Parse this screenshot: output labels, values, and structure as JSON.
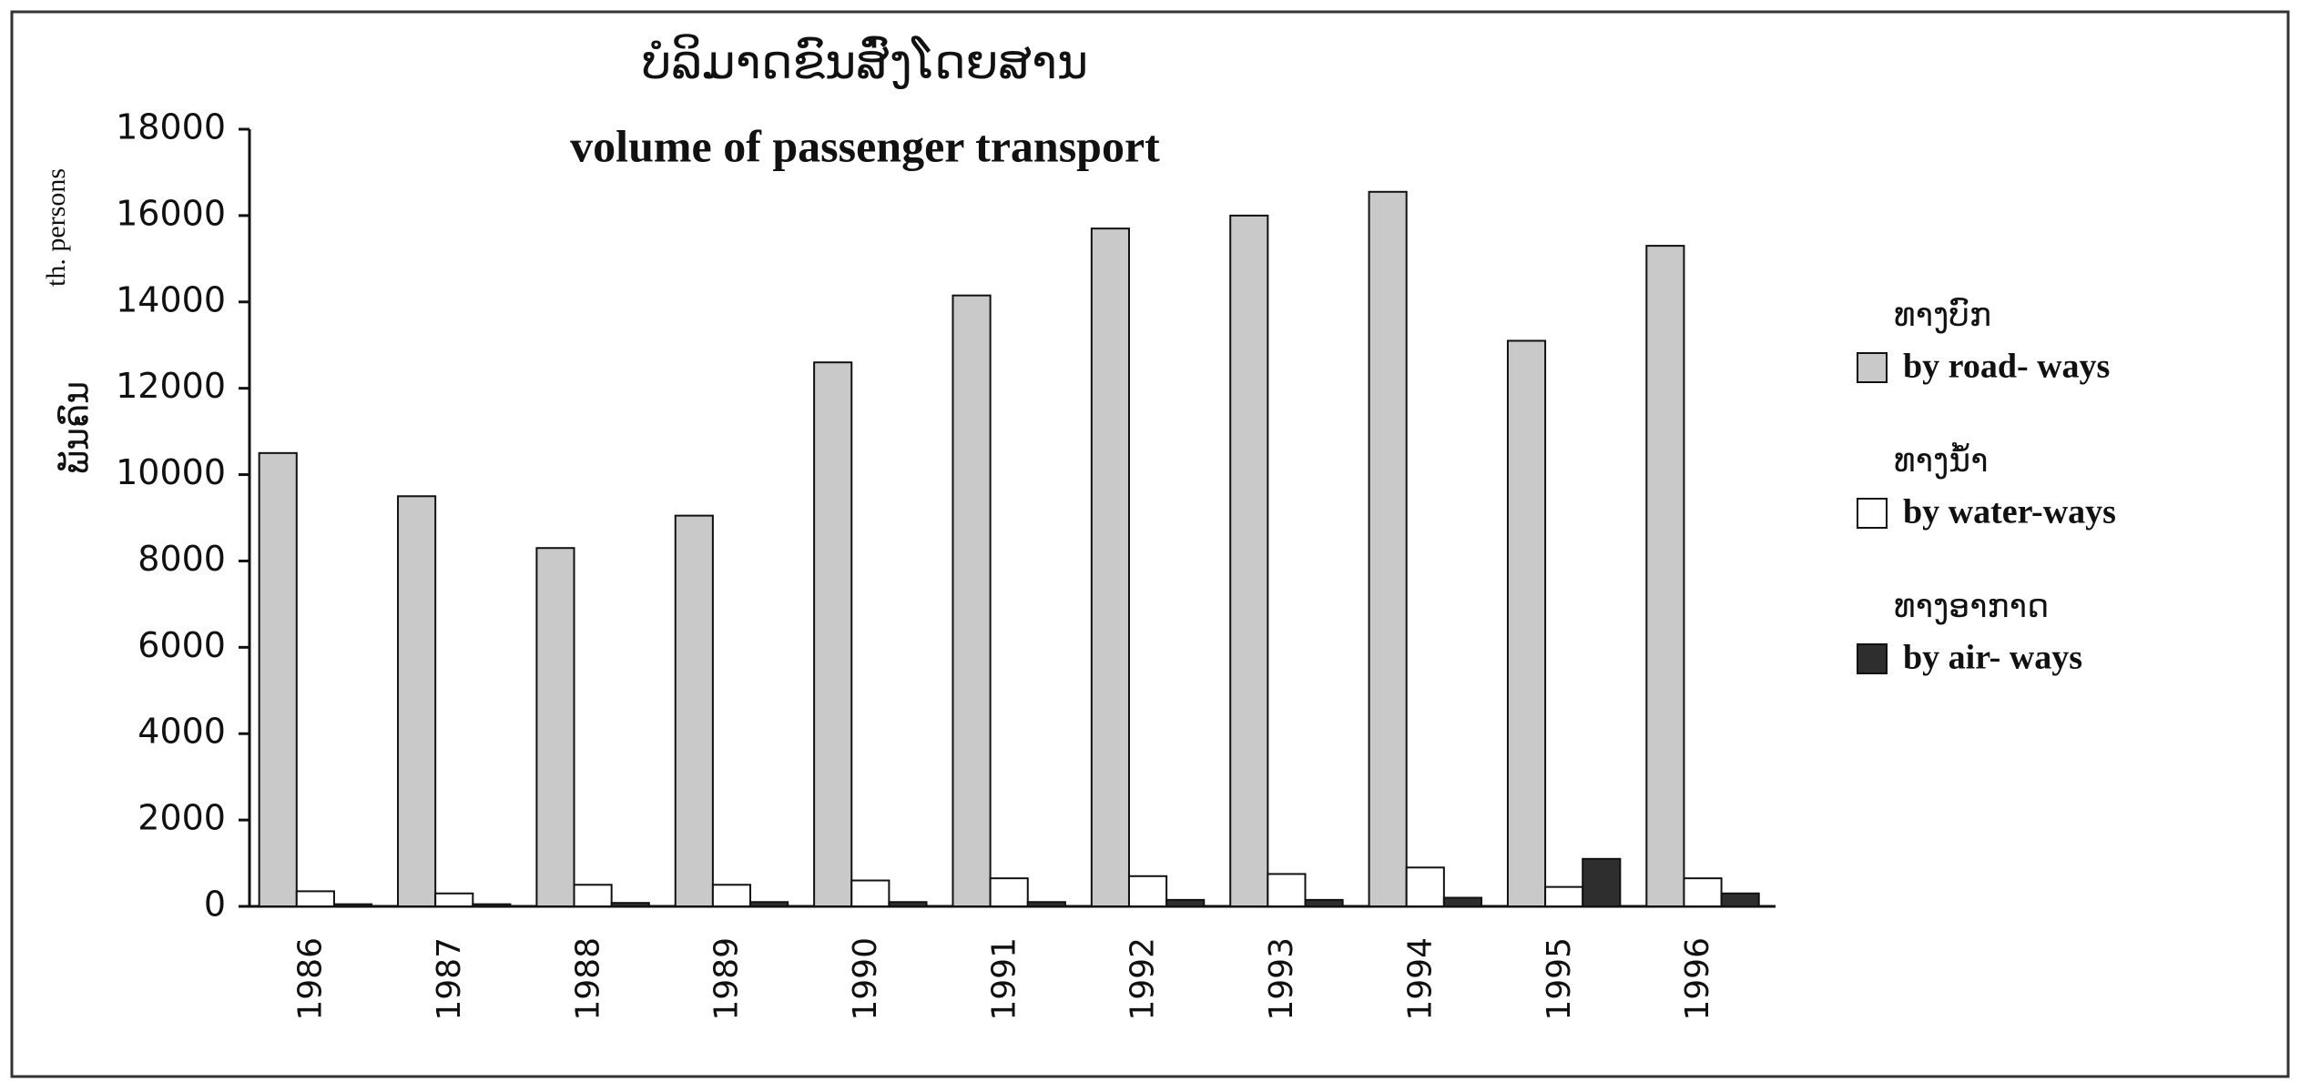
{
  "chart_data": {
    "type": "bar",
    "title": "ບໍລິມາດຂົນສົ່ງໂດຍສານ",
    "subtitle": "volume of passenger transport",
    "y_label_lao": "ພັນຄົນ",
    "y_label": "th. persons",
    "categories": [
      "1986",
      "1987",
      "1988",
      "1989",
      "1990",
      "1991",
      "1992",
      "1993",
      "1994",
      "1995",
      "1996"
    ],
    "series": [
      {
        "name_lao": "ທາງບົກ",
        "name": "by road- ways",
        "color": "#c9c9c9",
        "values": [
          10500,
          9500,
          8300,
          9050,
          12600,
          14150,
          15700,
          16000,
          16550,
          13100,
          15300
        ]
      },
      {
        "name_lao": "ທາງນ້ຳ",
        "name": "by water-ways",
        "color": "#ffffff",
        "values": [
          350,
          300,
          500,
          500,
          600,
          650,
          700,
          750,
          900,
          450,
          650
        ]
      },
      {
        "name_lao": "ທາງອາກາດ",
        "name": "by air- ways",
        "color": "#2e2e2e",
        "values": [
          50,
          50,
          80,
          100,
          100,
          100,
          150,
          150,
          200,
          1100,
          300
        ]
      }
    ],
    "ylim": [
      0,
      18000
    ],
    "yticks": [
      0,
      2000,
      4000,
      6000,
      8000,
      10000,
      12000,
      14000,
      16000,
      18000
    ],
    "legend": "right"
  }
}
